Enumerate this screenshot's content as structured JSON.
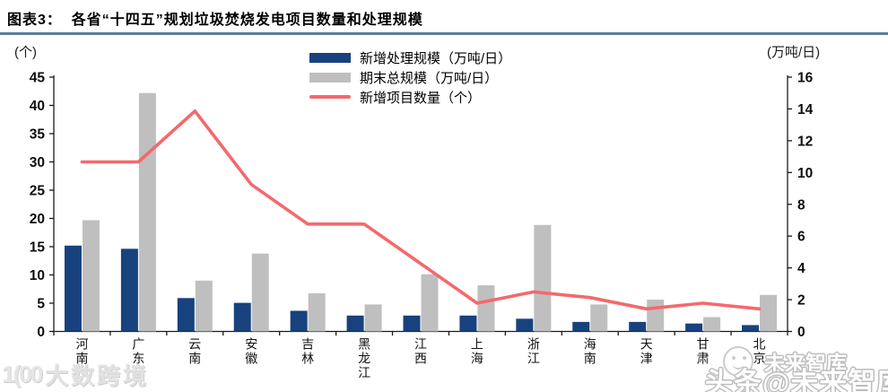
{
  "header": {
    "title": "图表3：  各省“十四五”规划垃圾焚烧发电项目数量和处理规模"
  },
  "axes": {
    "left_unit": "(个)",
    "right_unit": "(万吨/日)"
  },
  "chart_data": {
    "type": "combo",
    "title": "各省“十四五”规划垃圾焚烧发电项目数量和处理规模",
    "categories": [
      "河南",
      "广东",
      "云南",
      "安徽",
      "吉林",
      "黑龙江",
      "江西",
      "上海",
      "浙江",
      "海南",
      "天津",
      "甘肃",
      "北京"
    ],
    "series": [
      {
        "name": "新增处理规模（万吨/日）",
        "type": "bar",
        "axis": "right",
        "color": "#17427D",
        "values": [
          5.4,
          5.2,
          2.1,
          1.8,
          1.3,
          1.0,
          1.0,
          1.0,
          0.8,
          0.6,
          0.6,
          0.5,
          0.4
        ]
      },
      {
        "name": "期末总规模（万吨/日）",
        "type": "bar",
        "axis": "right",
        "color": "#BFBFBF",
        "values": [
          7.0,
          15.0,
          3.2,
          4.9,
          2.4,
          1.7,
          3.6,
          2.9,
          6.7,
          1.7,
          2.0,
          0.9,
          2.3
        ]
      },
      {
        "name": "新增项目数量（个）",
        "type": "line",
        "axis": "left",
        "color": "#F4696C",
        "values": [
          30,
          30,
          39,
          26,
          19,
          19,
          12,
          5,
          7,
          6,
          4,
          5,
          4
        ]
      }
    ],
    "left_axis": {
      "unit": "(个)",
      "min": 0,
      "max": 45,
      "step": 5
    },
    "right_axis": {
      "unit": "(万吨/日)",
      "min": 0,
      "max": 16,
      "step": 2
    },
    "legend_position": "top-center",
    "grid": false
  },
  "watermarks": {
    "bottom_left_logo": "1(00",
    "bottom_left_text": "大数跨境",
    "right_small_text": "未来智库",
    "right_big_text": "头条@未来智库"
  }
}
